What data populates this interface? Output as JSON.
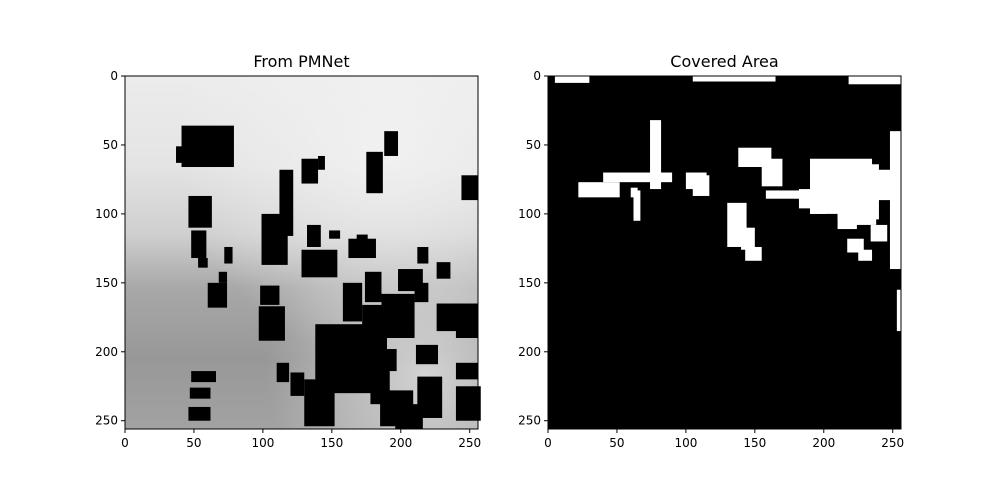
{
  "chart_data": [
    {
      "type": "heatmap",
      "title": "From PMNet",
      "colormap": "gray",
      "image_size": [
        256,
        256
      ],
      "xlim": [
        0,
        256
      ],
      "ylim": [
        256,
        0
      ],
      "xticks": [
        0,
        50,
        100,
        150,
        200,
        250
      ],
      "yticks": [
        0,
        50,
        100,
        150,
        200,
        250
      ],
      "buildings": [
        [
          41,
          36,
          38,
          30
        ],
        [
          37,
          51,
          9,
          12
        ],
        [
          46,
          87,
          17,
          23
        ],
        [
          48,
          112,
          11,
          20
        ],
        [
          53,
          132,
          7,
          7
        ],
        [
          72,
          124,
          6,
          12
        ],
        [
          60,
          150,
          14,
          18
        ],
        [
          68,
          142,
          6,
          8
        ],
        [
          99,
          100,
          19,
          37
        ],
        [
          98,
          152,
          14,
          14
        ],
        [
          97,
          167,
          19,
          25
        ],
        [
          112,
          68,
          10,
          48
        ],
        [
          128,
          60,
          12,
          18
        ],
        [
          140,
          58,
          5,
          10
        ],
        [
          132,
          108,
          10,
          16
        ],
        [
          128,
          126,
          26,
          20
        ],
        [
          148,
          112,
          8,
          6
        ],
        [
          138,
          180,
          52,
          50
        ],
        [
          110,
          208,
          9,
          14
        ],
        [
          120,
          215,
          10,
          17
        ],
        [
          130,
          220,
          22,
          34
        ],
        [
          158,
          150,
          14,
          28
        ],
        [
          174,
          142,
          12,
          22
        ],
        [
          162,
          118,
          20,
          14
        ],
        [
          172,
          166,
          16,
          28
        ],
        [
          186,
          158,
          24,
          32
        ],
        [
          198,
          140,
          18,
          16
        ],
        [
          210,
          150,
          10,
          14
        ],
        [
          175,
          55,
          12,
          30
        ],
        [
          188,
          40,
          10,
          18
        ],
        [
          226,
          165,
          30,
          20
        ],
        [
          240,
          178,
          16,
          12
        ],
        [
          178,
          210,
          14,
          28
        ],
        [
          188,
          198,
          9,
          16
        ],
        [
          185,
          228,
          24,
          26
        ],
        [
          196,
          238,
          20,
          18
        ],
        [
          212,
          218,
          18,
          30
        ],
        [
          240,
          225,
          18,
          25
        ],
        [
          211,
          195,
          16,
          14
        ],
        [
          226,
          135,
          10,
          12
        ],
        [
          240,
          208,
          16,
          12
        ],
        [
          244,
          72,
          12,
          18
        ],
        [
          212,
          124,
          8,
          12
        ],
        [
          168,
          115,
          8,
          6
        ],
        [
          48,
          214,
          18,
          8
        ],
        [
          47,
          226,
          15,
          8
        ],
        [
          46,
          240,
          16,
          10
        ]
      ]
    },
    {
      "type": "heatmap",
      "title": "Covered Area",
      "colormap": "gray",
      "image_size": [
        256,
        256
      ],
      "xlim": [
        0,
        256
      ],
      "ylim": [
        256,
        0
      ],
      "xticks": [
        0,
        50,
        100,
        150,
        200,
        250
      ],
      "yticks": [
        0,
        50,
        100,
        150,
        200,
        250
      ],
      "covered_regions": [
        [
          5,
          0,
          25,
          5
        ],
        [
          105,
          0,
          60,
          4
        ],
        [
          218,
          0,
          38,
          6
        ],
        [
          74,
          32,
          8,
          50
        ],
        [
          40,
          70,
          50,
          7
        ],
        [
          22,
          77,
          30,
          11
        ],
        [
          60,
          81,
          5,
          7
        ],
        [
          62,
          83,
          5,
          22
        ],
        [
          105,
          72,
          12,
          15
        ],
        [
          100,
          70,
          15,
          12
        ],
        [
          138,
          52,
          24,
          14
        ],
        [
          155,
          60,
          15,
          20
        ],
        [
          190,
          60,
          45,
          40
        ],
        [
          210,
          64,
          30,
          40
        ],
        [
          234,
          68,
          20,
          22
        ],
        [
          248,
          40,
          8,
          100
        ],
        [
          130,
          92,
          14,
          32
        ],
        [
          140,
          110,
          10,
          16
        ],
        [
          143,
          124,
          12,
          10
        ],
        [
          158,
          83,
          30,
          6
        ],
        [
          182,
          82,
          18,
          14
        ],
        [
          190,
          86,
          12,
          14
        ],
        [
          210,
          93,
          14,
          18
        ],
        [
          222,
          96,
          16,
          12
        ],
        [
          217,
          118,
          12,
          10
        ],
        [
          234,
          108,
          12,
          12
        ],
        [
          225,
          126,
          10,
          8
        ],
        [
          253,
          155,
          3,
          30
        ]
      ]
    }
  ]
}
